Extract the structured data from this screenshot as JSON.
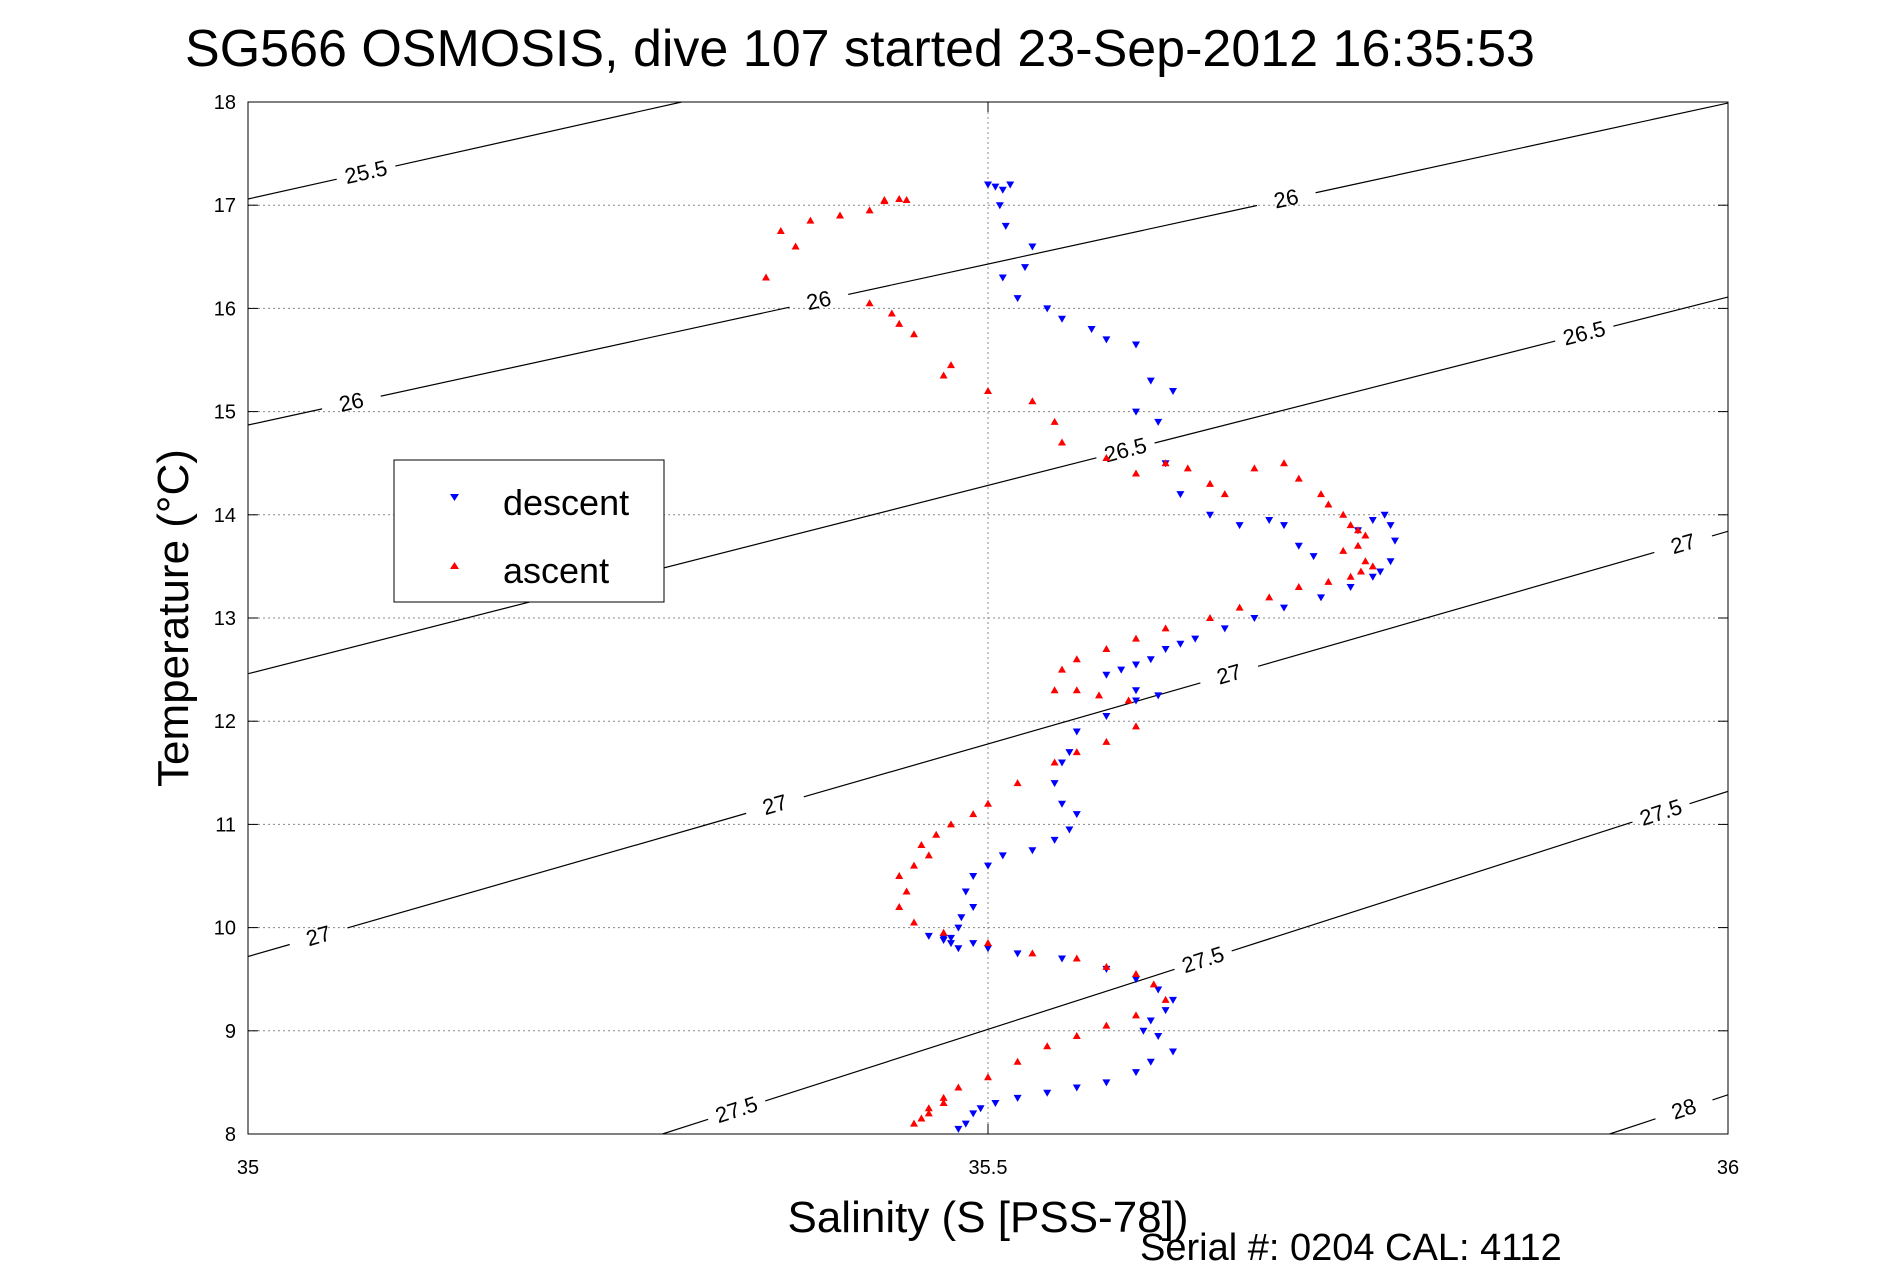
{
  "chart_data": {
    "type": "scatter",
    "title": "SG566 OSMOSIS, dive 107 started 23-Sep-2012 16:35:53",
    "xlabel": "Salinity (S [PSS-78])",
    "ylabel": "Temperature (°C)",
    "xlim": [
      35,
      36
    ],
    "ylim": [
      8,
      18
    ],
    "xticks": [
      35,
      35.5,
      36
    ],
    "xtick_labels": [
      "35",
      "35.5",
      "36"
    ],
    "yticks": [
      8,
      9,
      10,
      11,
      12,
      13,
      14,
      15,
      16,
      17,
      18
    ],
    "ytick_labels": [
      "8",
      "9",
      "10",
      "11",
      "12",
      "13",
      "14",
      "15",
      "16",
      "17",
      "18"
    ],
    "grid": true,
    "legend_position": "middle-left",
    "footer": "Serial #: 0204  CAL: 4112",
    "colors": {
      "descent": "#0000ff",
      "ascent": "#ff0000",
      "contour": "#000000"
    },
    "contours": [
      {
        "value": 25.5,
        "label": "25.5",
        "points": [
          [
            35.0,
            17.06
          ],
          [
            35.293,
            18.0
          ]
        ],
        "labels_at": [
          [
            35.08,
            17.3
          ]
        ]
      },
      {
        "value": 26.0,
        "label": "26",
        "points": [
          [
            35.0,
            14.87
          ],
          [
            36.0,
            17.99
          ]
        ],
        "labels_at": [
          [
            35.07,
            15.08
          ],
          [
            35.385,
            16.12
          ],
          [
            35.7,
            17.16
          ]
        ]
      },
      {
        "value": 26.5,
        "label": "26.5",
        "points": [
          [
            35.0,
            12.46
          ],
          [
            36.0,
            16.11
          ]
        ],
        "labels_at": [
          [
            35.593,
            14.62
          ],
          [
            35.903,
            15.75
          ]
        ]
      },
      {
        "value": 27.0,
        "label": "27",
        "points": [
          [
            35.0,
            9.72
          ],
          [
            36.0,
            13.84
          ]
        ],
        "labels_at": [
          [
            35.048,
            9.9
          ],
          [
            35.355,
            11.24
          ],
          [
            35.662,
            12.5
          ],
          [
            35.97,
            13.7
          ]
        ]
      },
      {
        "value": 27.5,
        "label": "27.5",
        "points": [
          [
            35.28,
            8.0
          ],
          [
            36.0,
            11.32
          ]
        ],
        "labels_at": [
          [
            35.33,
            8.24
          ],
          [
            35.645,
            9.7
          ],
          [
            35.955,
            11.1
          ]
        ]
      },
      {
        "value": 28.0,
        "label": "28",
        "points": [
          [
            35.92,
            8.0
          ],
          [
            36.0,
            8.38
          ]
        ],
        "labels_at": [
          [
            35.97,
            8.25
          ]
        ]
      }
    ],
    "series": [
      {
        "name": "descent",
        "marker": "triangle-down",
        "x": [
          35.5,
          35.505,
          35.51,
          35.515,
          35.508,
          35.512,
          35.51,
          35.52,
          35.525,
          35.53,
          35.54,
          35.55,
          35.57,
          35.58,
          35.6,
          35.61,
          35.625,
          35.6,
          35.615,
          35.62,
          35.63,
          35.65,
          35.67,
          35.69,
          35.7,
          35.71,
          35.72,
          35.75,
          35.76,
          35.768,
          35.772,
          35.775,
          35.772,
          35.765,
          35.76,
          35.745,
          35.725,
          35.7,
          35.68,
          35.66,
          35.64,
          35.63,
          35.62,
          35.61,
          35.6,
          35.59,
          35.58,
          35.6,
          35.615,
          35.6,
          35.58,
          35.56,
          35.555,
          35.55,
          35.545,
          35.55,
          35.56,
          35.555,
          35.545,
          35.53,
          35.51,
          35.5,
          35.49,
          35.485,
          35.49,
          35.482,
          35.48,
          35.47,
          35.475,
          35.48,
          35.47,
          35.46,
          35.475,
          35.49,
          35.5,
          35.52,
          35.55,
          35.58,
          35.6,
          35.615,
          35.625,
          35.62,
          35.61,
          35.605,
          35.615,
          35.625,
          35.61,
          35.6,
          35.58,
          35.56,
          35.54,
          35.52,
          35.505,
          35.495,
          35.49,
          35.485,
          35.48
        ],
        "y": [
          17.2,
          17.18,
          17.15,
          17.2,
          17.0,
          16.8,
          16.3,
          16.1,
          16.4,
          16.6,
          16.0,
          15.9,
          15.8,
          15.7,
          15.65,
          15.3,
          15.2,
          15.0,
          14.9,
          14.5,
          14.2,
          14.0,
          13.9,
          13.95,
          13.9,
          13.7,
          13.6,
          13.85,
          13.95,
          14.0,
          13.9,
          13.75,
          13.55,
          13.45,
          13.4,
          13.3,
          13.2,
          13.1,
          13.0,
          12.9,
          12.8,
          12.75,
          12.7,
          12.6,
          12.55,
          12.5,
          12.45,
          12.3,
          12.25,
          12.2,
          12.05,
          11.9,
          11.7,
          11.6,
          11.4,
          11.2,
          11.1,
          10.95,
          10.85,
          10.75,
          10.7,
          10.6,
          10.5,
          10.35,
          10.2,
          10.1,
          10.0,
          9.9,
          9.85,
          9.8,
          9.88,
          9.92,
          9.9,
          9.85,
          9.8,
          9.75,
          9.7,
          9.6,
          9.5,
          9.4,
          9.3,
          9.2,
          9.1,
          9.0,
          8.95,
          8.8,
          8.7,
          8.6,
          8.5,
          8.45,
          8.4,
          8.35,
          8.3,
          8.25,
          8.2,
          8.1,
          8.05
        ]
      },
      {
        "name": "ascent",
        "marker": "triangle-up",
        "x": [
          35.43,
          35.44,
          35.445,
          35.43,
          35.42,
          35.4,
          35.38,
          35.36,
          35.37,
          35.35,
          35.42,
          35.435,
          35.44,
          35.45,
          35.475,
          35.47,
          35.5,
          35.53,
          35.545,
          35.55,
          35.58,
          35.6,
          35.62,
          35.635,
          35.65,
          35.66,
          35.68,
          35.7,
          35.71,
          35.725,
          35.73,
          35.74,
          35.745,
          35.75,
          35.755,
          35.75,
          35.74,
          35.755,
          35.76,
          35.752,
          35.745,
          35.73,
          35.71,
          35.69,
          35.67,
          35.65,
          35.62,
          35.6,
          35.58,
          35.56,
          35.55,
          35.545,
          35.56,
          35.575,
          35.595,
          35.6,
          35.58,
          35.56,
          35.545,
          35.52,
          35.5,
          35.49,
          35.475,
          35.465,
          35.455,
          35.46,
          35.45,
          35.44,
          35.445,
          35.44,
          35.45,
          35.47,
          35.5,
          35.53,
          35.56,
          35.58,
          35.6,
          35.612,
          35.62,
          35.6,
          35.58,
          35.56,
          35.54,
          35.52,
          35.5,
          35.48,
          35.47,
          35.46,
          35.455,
          35.45,
          35.46,
          35.47
        ],
        "y": [
          17.05,
          17.06,
          17.05,
          17.04,
          16.95,
          16.9,
          16.85,
          16.75,
          16.6,
          16.3,
          16.05,
          15.95,
          15.85,
          15.75,
          15.45,
          15.35,
          15.2,
          15.1,
          14.9,
          14.7,
          14.55,
          14.4,
          14.5,
          14.45,
          14.3,
          14.2,
          14.45,
          14.5,
          14.35,
          14.2,
          14.1,
          14.0,
          13.9,
          13.85,
          13.8,
          13.7,
          13.65,
          13.55,
          13.5,
          13.45,
          13.4,
          13.35,
          13.3,
          13.2,
          13.1,
          13.0,
          12.9,
          12.8,
          12.7,
          12.6,
          12.5,
          12.3,
          12.3,
          12.25,
          12.2,
          11.95,
          11.8,
          11.7,
          11.6,
          11.4,
          11.2,
          11.1,
          11.0,
          10.9,
          10.8,
          10.7,
          10.6,
          10.5,
          10.35,
          10.2,
          10.05,
          9.95,
          9.85,
          9.75,
          9.7,
          9.62,
          9.55,
          9.45,
          9.3,
          9.15,
          9.05,
          8.95,
          8.85,
          8.7,
          8.55,
          8.45,
          8.35,
          8.25,
          8.15,
          8.1,
          8.2,
          8.3
        ]
      }
    ]
  }
}
